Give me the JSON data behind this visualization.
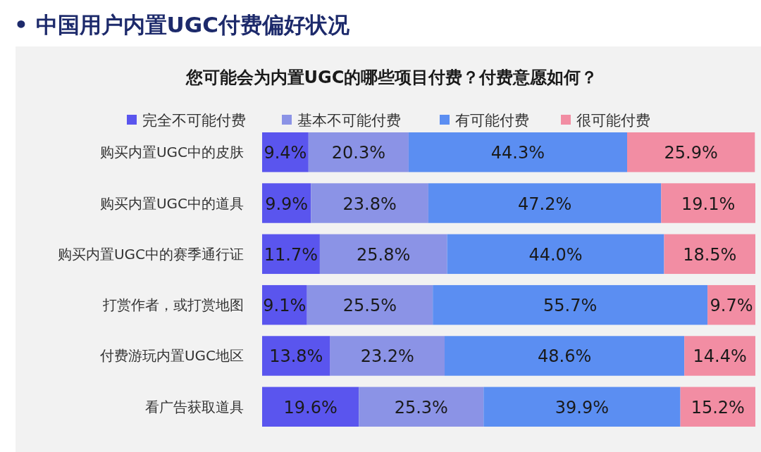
{
  "chart_data": {
    "type": "bar",
    "orientation": "horizontal",
    "stacked": true,
    "title": "• 中国用户内置UGC付费偏好状况",
    "subtitle": "您可能会为内置UGC的哪些项目付费？付费意愿如何？",
    "categories": [
      "购买内置UGC中的皮肤",
      "购买内置UGC中的道具",
      "购买内置UGC中的赛季通行证",
      "打赏作者，或打赏地图",
      "付费游玩内置UGC地区",
      "看广告获取道具"
    ],
    "series": [
      {
        "name": "完全不可能付费",
        "color": "#5a55ee",
        "values": [
          9.4,
          9.9,
          11.7,
          9.1,
          13.8,
          19.6
        ],
        "value_labels": [
          "9.4%",
          "9.9%",
          "11.7%",
          "9.1%",
          "13.8%",
          "19.6%"
        ]
      },
      {
        "name": "基本不可能付费",
        "color": "#8b93e6",
        "values": [
          20.3,
          23.8,
          25.8,
          25.5,
          23.2,
          25.3
        ],
        "value_labels": [
          "20.3%",
          "23.8%",
          "25.8%",
          "25.5%",
          "23.2%",
          "25.3%"
        ]
      },
      {
        "name": "有可能付费",
        "color": "#5b8ef2",
        "values": [
          44.3,
          47.2,
          44.0,
          55.7,
          48.6,
          39.9
        ],
        "value_labels": [
          "44.3%",
          "47.2%",
          "44.0%",
          "55.7%",
          "48.6%",
          "39.9%"
        ]
      },
      {
        "name": "很可能付费",
        "color": "#f28da3",
        "values": [
          25.9,
          19.1,
          18.5,
          9.7,
          14.4,
          15.2
        ],
        "value_labels": [
          "25.9%",
          "19.1%",
          "18.5%",
          "9.7%",
          "14.4%",
          "15.2%"
        ]
      }
    ],
    "legend": "top",
    "tick_labels": "y"
  }
}
